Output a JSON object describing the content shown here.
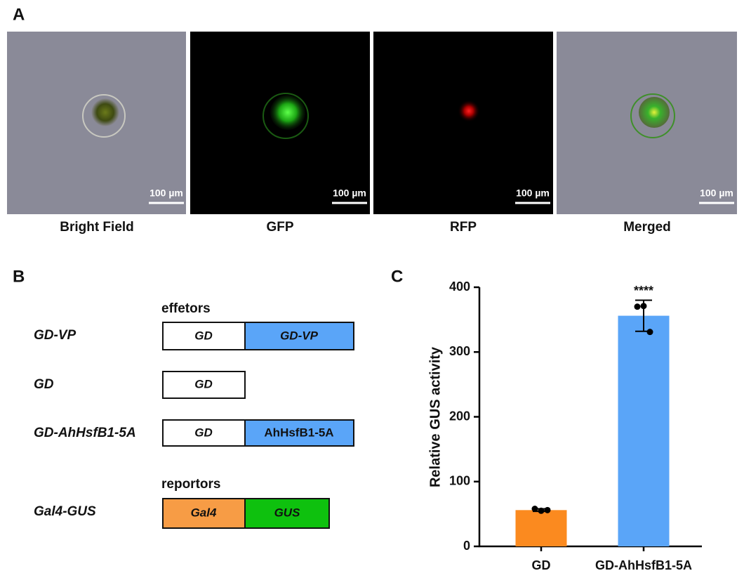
{
  "panel_a": {
    "letter": "A",
    "panels": [
      {
        "label": "Bright Field",
        "scale_bar": "100 µm"
      },
      {
        "label": "GFP",
        "scale_bar": "100 µm"
      },
      {
        "label": "RFP",
        "scale_bar": "100 µm"
      },
      {
        "label": "Merged",
        "scale_bar": "100 µm"
      }
    ]
  },
  "panel_b": {
    "letter": "B",
    "effectors_header": "effetors",
    "reporters_header": "reportors",
    "rows": [
      {
        "name": "GD-VP",
        "boxes": [
          "GD",
          "GD-VP"
        ]
      },
      {
        "name": "GD",
        "boxes": [
          "GD"
        ]
      },
      {
        "name": "GD-AhHsfB1-5A",
        "boxes": [
          "GD",
          "AhHsfB1-5A"
        ]
      },
      {
        "name": "Gal4-GUS",
        "boxes": [
          "Gal4",
          "GUS"
        ]
      }
    ]
  },
  "chart_data": {
    "type": "bar",
    "letter": "C",
    "ylabel": "Relative GUS activity",
    "categories": [
      "GD",
      "GD-AhHsfB1-5A"
    ],
    "values": [
      56,
      356
    ],
    "errors": [
      2,
      24
    ],
    "points": [
      [
        58,
        55,
        56
      ],
      [
        370,
        371,
        331
      ]
    ],
    "significance": [
      null,
      "****"
    ],
    "colors": [
      "#fb8a1f",
      "#5aa5f8"
    ],
    "ylim": [
      0,
      400
    ],
    "yticks": [
      0,
      100,
      200,
      300,
      400
    ]
  }
}
